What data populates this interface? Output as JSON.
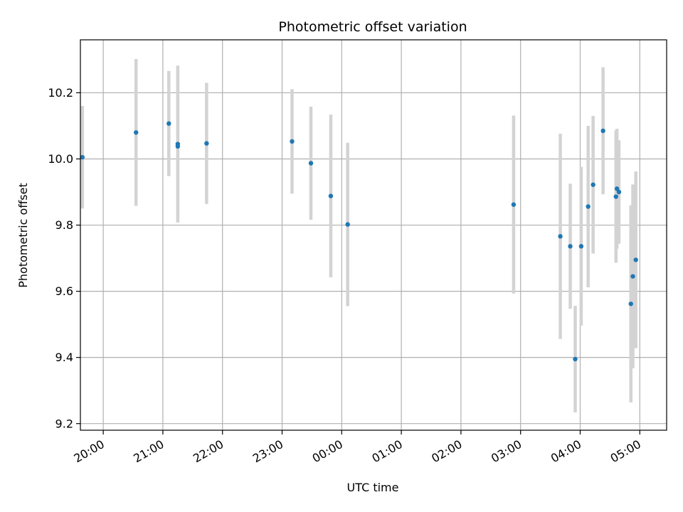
{
  "chart_data": {
    "type": "scatter",
    "title": "Photometric offset variation",
    "xlabel": "UTC time",
    "ylabel": "Photometric offset",
    "x_axis": "time",
    "x_ticks": [
      "20:00",
      "21:00",
      "22:00",
      "23:00",
      "00:00",
      "01:00",
      "02:00",
      "03:00",
      "04:00",
      "05:00"
    ],
    "x_tick_hours": [
      20,
      21,
      22,
      23,
      24,
      25,
      26,
      27,
      28,
      29
    ],
    "xlim": [
      "19:37",
      "05:27"
    ],
    "y_ticks": [
      "9.2",
      "9.4",
      "9.6",
      "9.8",
      "10.0",
      "10.2"
    ],
    "ylim": [
      9.18,
      10.36
    ],
    "grid": true,
    "point_color": "#1f77b4",
    "errorbar_color": "#d3d3d3",
    "points": [
      {
        "x": "19:39",
        "y": 10.005,
        "err": 0.155
      },
      {
        "x": "20:33",
        "y": 10.08,
        "err": 0.222
      },
      {
        "x": "21:06",
        "y": 10.107,
        "err": 0.159
      },
      {
        "x": "21:15",
        "y": 10.045,
        "err": 0.237
      },
      {
        "x": "21:15",
        "y": 10.038,
        "err": 0.0
      },
      {
        "x": "21:44",
        "y": 10.047,
        "err": 0.183
      },
      {
        "x": "23:10",
        "y": 10.053,
        "err": 0.158
      },
      {
        "x": "23:29",
        "y": 9.987,
        "err": 0.171
      },
      {
        "x": "23:49",
        "y": 9.888,
        "err": 0.246
      },
      {
        "x": "00:06",
        "y": 9.802,
        "err": 0.247
      },
      {
        "x": "02:53",
        "y": 9.862,
        "err": 0.269
      },
      {
        "x": "03:40",
        "y": 9.766,
        "err": 0.31
      },
      {
        "x": "03:50",
        "y": 9.736,
        "err": 0.189
      },
      {
        "x": "03:55",
        "y": 9.395,
        "err": 0.161
      },
      {
        "x": "04:01",
        "y": 9.736,
        "err": 0.24
      },
      {
        "x": "04:08",
        "y": 9.856,
        "err": 0.244
      },
      {
        "x": "04:13",
        "y": 9.922,
        "err": 0.208
      },
      {
        "x": "04:23",
        "y": 10.085,
        "err": 0.192
      },
      {
        "x": "04:36",
        "y": 9.886,
        "err": 0.2
      },
      {
        "x": "04:37",
        "y": 9.91,
        "err": 0.181
      },
      {
        "x": "04:39",
        "y": 9.9,
        "err": 0.156
      },
      {
        "x": "04:51",
        "y": 9.562,
        "err": 0.298
      },
      {
        "x": "04:53",
        "y": 9.645,
        "err": 0.278
      },
      {
        "x": "04:56",
        "y": 9.695,
        "err": 0.267
      }
    ]
  }
}
